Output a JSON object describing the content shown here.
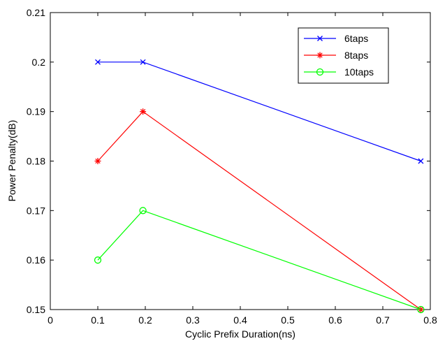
{
  "chart_data": {
    "type": "line",
    "title": "",
    "xlabel": "Cyclic Prefix Duration(ns)",
    "ylabel": "Power Penalty(dB)",
    "xlim": [
      0,
      0.8
    ],
    "ylim": [
      0.15,
      0.21
    ],
    "x_ticks": [
      0,
      0.1,
      0.2,
      0.3,
      0.4,
      0.5,
      0.6,
      0.7,
      0.8
    ],
    "x_tick_labels": [
      "0",
      "0.1",
      "0.2",
      "0.3",
      "0.4",
      "0.5",
      "0.6",
      "0.7",
      "0.8"
    ],
    "y_ticks": [
      0.15,
      0.16,
      0.17,
      0.18,
      0.19,
      0.2,
      0.21
    ],
    "y_tick_labels": [
      "0.15",
      "0.16",
      "0.17",
      "0.18",
      "0.19",
      "0.2",
      "0.21"
    ],
    "grid": false,
    "legend_position": "top-right",
    "x": [
      0.1,
      0.195,
      0.78
    ],
    "series": [
      {
        "name": "6taps",
        "values": [
          0.2,
          0.2,
          0.18
        ],
        "color": "#0000ff",
        "marker": "x"
      },
      {
        "name": "8taps",
        "values": [
          0.18,
          0.19,
          0.15
        ],
        "color": "#ff0000",
        "marker": "star"
      },
      {
        "name": "10taps",
        "values": [
          0.16,
          0.17,
          0.15
        ],
        "color": "#00ff00",
        "marker": "circle"
      }
    ]
  }
}
